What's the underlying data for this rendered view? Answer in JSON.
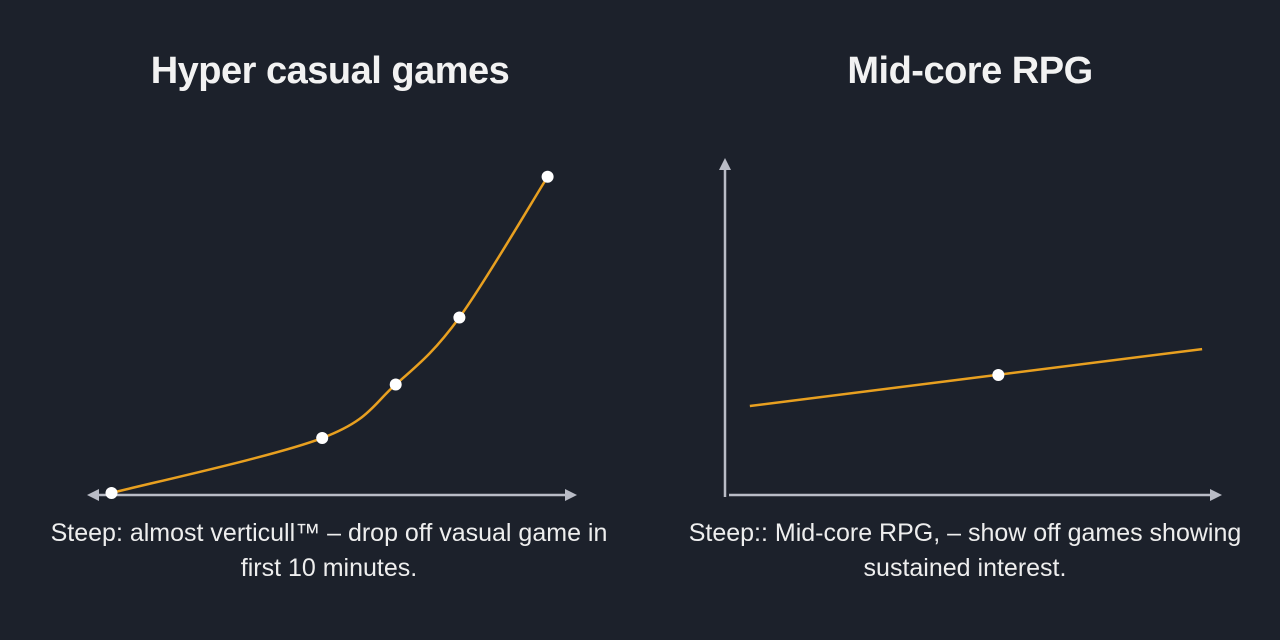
{
  "chart_data": [
    {
      "type": "line",
      "title": "Hyper casual games",
      "caption": "Steep: almost verticull™ – drop off vasual game in first 10 minutes.",
      "xlabel": "",
      "ylabel": "",
      "xlim": [
        0,
        100
      ],
      "ylim": [
        0,
        100
      ],
      "grid": false,
      "x_axis_arrows": "both",
      "y_axis": false,
      "smooth": true,
      "line_color": "#e8a020",
      "marker_color": "#ffffff",
      "points": [
        [
          5,
          0.6
        ],
        [
          48,
          17
        ],
        [
          63,
          33
        ],
        [
          76,
          53
        ],
        [
          94,
          95
        ]
      ]
    },
    {
      "type": "line",
      "title": "Mid-core RPG",
      "caption": "Steep:: Mid-core RPG, – show off games showing sustained interest.",
      "xlabel": "",
      "ylabel": "",
      "xlim": [
        0,
        100
      ],
      "ylim": [
        0,
        100
      ],
      "grid": false,
      "x_axis_arrows": "end",
      "y_axis": true,
      "smooth": false,
      "line_color": "#e8a020",
      "marker_color": "#ffffff",
      "points": [
        [
          5,
          26.4
        ],
        [
          96,
          43.3
        ]
      ],
      "markers": [
        [
          55,
          35.6
        ]
      ]
    }
  ],
  "colors": {
    "background": "#1c212b",
    "axis": "#b9bcc6",
    "text": "#f2f2f2"
  }
}
